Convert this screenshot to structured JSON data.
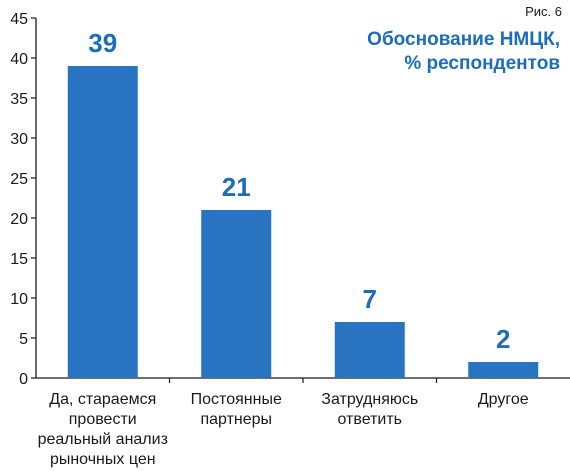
{
  "figure_label": "Рис. 6",
  "title_line1": "Обоснование НМЦК,",
  "title_line2": "% респондентов",
  "colors": {
    "bar": "#2874c1",
    "value_label": "#1c6dbb",
    "axis": "#1a1a1a"
  },
  "chart_data": {
    "type": "bar",
    "title": "Обоснование НМЦК, % респондентов",
    "categories": [
      "Да, стараемся\nпровести\nреальный анализ\nрыночных цен",
      "Постоянные\nпартнеры",
      "Затрудняюсь\nответить",
      "Другое"
    ],
    "values": [
      39,
      21,
      7,
      2
    ],
    "value_labels": [
      "39",
      "21",
      "7",
      "2"
    ],
    "ylim": [
      0,
      45
    ],
    "yticks": [
      "0",
      "5",
      "10",
      "15",
      "20",
      "25",
      "30",
      "35",
      "40",
      "45"
    ],
    "xlabel": "",
    "ylabel": "",
    "grid": false,
    "legend": "none"
  }
}
